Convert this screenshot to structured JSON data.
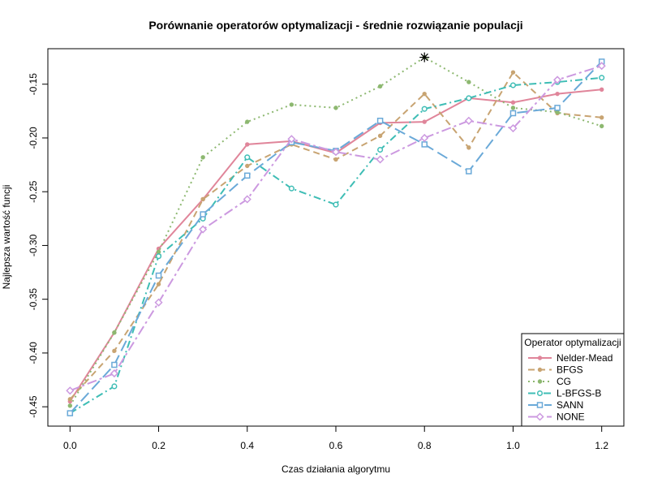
{
  "chart_data": {
    "type": "line",
    "title": "Porównanie operatorów optymalizacji - średnie rozwiązanie populacji",
    "xlabel": "Czas działania algorytmu",
    "ylabel": "Najlepsza wartość funcji",
    "xlim": [
      -0.05,
      1.25
    ],
    "ylim": [
      -0.468,
      -0.117
    ],
    "xticks": [
      0.0,
      0.2,
      0.4,
      0.6,
      0.8,
      1.0,
      1.2
    ],
    "xtick_labels": [
      "0.0",
      "0.2",
      "0.4",
      "0.6",
      "0.8",
      "1.0",
      "1.2"
    ],
    "yticks": [
      -0.45,
      -0.4,
      -0.35,
      -0.3,
      -0.25,
      -0.2,
      -0.15
    ],
    "ytick_labels": [
      "-0.45",
      "-0.40",
      "-0.35",
      "-0.30",
      "-0.25",
      "-0.20",
      "-0.15"
    ],
    "grid": false,
    "legend": {
      "title": "Operator optymalizacji",
      "placement": "bottom-right"
    },
    "x": [
      0.0,
      0.1,
      0.2,
      0.3,
      0.4,
      0.5,
      0.6,
      0.7,
      0.8,
      0.9,
      1.0,
      1.1,
      1.2
    ],
    "series": [
      {
        "name": "Nelder-Mead",
        "color": "#e0859a",
        "dash": "none",
        "marker": "dot",
        "values": [
          -0.445,
          -0.381,
          -0.303,
          -0.257,
          -0.206,
          -0.203,
          -0.214,
          -0.186,
          -0.185,
          -0.163,
          -0.167,
          -0.159,
          -0.155
        ]
      },
      {
        "name": "BFGS",
        "color": "#c8a472",
        "dash": "8 5",
        "marker": "dot",
        "values": [
          -0.443,
          -0.398,
          -0.336,
          -0.257,
          -0.226,
          -0.206,
          -0.22,
          -0.198,
          -0.159,
          -0.209,
          -0.139,
          -0.177,
          -0.181
        ]
      },
      {
        "name": "CG",
        "color": "#8db870",
        "dash": "2 4",
        "marker": "dot",
        "values": [
          -0.449,
          -0.381,
          -0.306,
          -0.218,
          -0.185,
          -0.169,
          -0.172,
          -0.152,
          -0.125,
          -0.148,
          -0.172,
          -0.176,
          -0.189
        ]
      },
      {
        "name": "L-BFGS-B",
        "color": "#3ebdb5",
        "dash": "9 4 2 4",
        "marker": "circle",
        "values": [
          -0.456,
          -0.431,
          -0.31,
          -0.275,
          -0.218,
          -0.247,
          -0.262,
          -0.211,
          -0.173,
          -0.163,
          -0.151,
          -0.148,
          -0.144
        ]
      },
      {
        "name": "SANN",
        "color": "#6aa9d8",
        "dash": "14 6",
        "marker": "square",
        "values": [
          -0.456,
          -0.411,
          -0.328,
          -0.271,
          -0.235,
          -0.204,
          -0.212,
          -0.184,
          -0.206,
          -0.231,
          -0.177,
          -0.172,
          -0.129
        ]
      },
      {
        "name": "NONE",
        "color": "#cc99e0",
        "dash": "12 4 3 4",
        "marker": "diamond",
        "values": [
          -0.435,
          -0.419,
          -0.353,
          -0.285,
          -0.257,
          -0.201,
          -0.213,
          -0.22,
          -0.2,
          -0.184,
          -0.191,
          -0.146,
          -0.133
        ]
      }
    ],
    "annotations": [
      {
        "type": "star-marker",
        "x": 0.8,
        "y": -0.125
      }
    ]
  }
}
